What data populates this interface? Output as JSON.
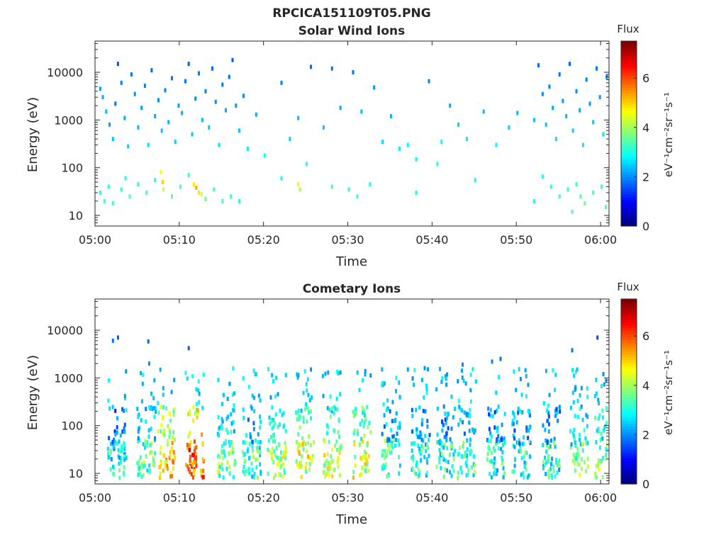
{
  "figure_title": "RPCICA151109T05.PNG",
  "chart_data": [
    {
      "type": "heatmap",
      "title": "Solar Wind Ions",
      "xlabel": "Time",
      "ylabel": "Energy (eV)",
      "y_scale": "log",
      "ylim": [
        6,
        45000
      ],
      "xlim": [
        "05:00",
        "06:01"
      ],
      "x_ticks": [
        "05:00",
        "05:10",
        "05:20",
        "05:30",
        "05:40",
        "05:50",
        "06:00"
      ],
      "y_ticks": [
        "10",
        "100",
        "1000",
        "10000"
      ],
      "colorbar": {
        "label": "Flux",
        "unit": "eV⁻¹cm⁻²sr⁻¹s⁻¹",
        "range": [
          0,
          7.5
        ],
        "ticks": [
          "0",
          "2",
          "4",
          "6"
        ]
      },
      "colormap": "jet",
      "background": "#ffffff",
      "time_unit": "minutes after 05:00",
      "points": [
        [
          0.5,
          4500,
          2.1
        ],
        [
          0.8,
          3000,
          2.2
        ],
        [
          1.2,
          1500,
          2.3
        ],
        [
          1.6,
          800,
          2.2
        ],
        [
          2.0,
          400,
          2.4
        ],
        [
          2.3,
          2200,
          1.8
        ],
        [
          2.6,
          15000,
          1.5
        ],
        [
          3.0,
          6000,
          1.9
        ],
        [
          3.4,
          1100,
          2.2
        ],
        [
          3.8,
          280,
          2.5
        ],
        [
          4.2,
          9000,
          1.8
        ],
        [
          4.6,
          3500,
          2.0
        ],
        [
          5.0,
          700,
          2.3
        ],
        [
          5.4,
          1800,
          2.1
        ],
        [
          5.8,
          5200,
          1.9
        ],
        [
          6.2,
          300,
          2.6
        ],
        [
          6.6,
          11000,
          1.7
        ],
        [
          7.0,
          1200,
          2.2
        ],
        [
          7.4,
          2600,
          2.0
        ],
        [
          7.8,
          600,
          2.4
        ],
        [
          8.2,
          4200,
          1.9
        ],
        [
          8.6,
          900,
          2.3
        ],
        [
          9.0,
          7500,
          1.8
        ],
        [
          9.4,
          350,
          2.5
        ],
        [
          9.8,
          2000,
          2.1
        ],
        [
          10.2,
          1400,
          2.2
        ],
        [
          10.6,
          6500,
          1.8
        ],
        [
          11.0,
          15000,
          1.6
        ],
        [
          11.4,
          500,
          2.4
        ],
        [
          11.8,
          2800,
          2.0
        ],
        [
          12.2,
          9500,
          1.8
        ],
        [
          12.6,
          1000,
          2.3
        ],
        [
          13.0,
          4000,
          1.9
        ],
        [
          13.4,
          700,
          2.4
        ],
        [
          13.8,
          12000,
          1.7
        ],
        [
          14.2,
          2400,
          2.0
        ],
        [
          14.6,
          300,
          2.6
        ],
        [
          15.0,
          5500,
          1.9
        ],
        [
          15.4,
          1600,
          2.2
        ],
        [
          15.8,
          8000,
          1.8
        ],
        [
          16.2,
          18000,
          1.6
        ],
        [
          16.6,
          2000,
          2.1
        ],
        [
          17.0,
          600,
          2.4
        ],
        [
          17.5,
          3200,
          2.0
        ],
        [
          18.0,
          250,
          2.7
        ],
        [
          19.0,
          1300,
          2.2
        ],
        [
          20.0,
          180,
          2.8
        ],
        [
          22.0,
          6000,
          1.9
        ],
        [
          23.0,
          400,
          2.5
        ],
        [
          24.0,
          1100,
          2.3
        ],
        [
          25.5,
          13000,
          1.7
        ],
        [
          27.0,
          700,
          2.4
        ],
        [
          28.0,
          12000,
          1.8
        ],
        [
          29.0,
          1800,
          2.2
        ],
        [
          30.5,
          10000,
          1.8
        ],
        [
          31.5,
          1500,
          2.3
        ],
        [
          33.0,
          4800,
          2.0
        ],
        [
          34.0,
          350,
          2.6
        ],
        [
          35.0,
          1200,
          2.3
        ],
        [
          36.0,
          250,
          2.7
        ],
        [
          37.0,
          300,
          2.8
        ],
        [
          38.0,
          150,
          2.9
        ],
        [
          39.5,
          6500,
          1.9
        ],
        [
          40.5,
          120,
          3.0
        ],
        [
          41.0,
          350,
          2.8
        ],
        [
          42.0,
          2000,
          2.2
        ],
        [
          43.0,
          800,
          2.5
        ],
        [
          44.0,
          400,
          2.7
        ],
        [
          46.0,
          1500,
          2.3
        ],
        [
          47.5,
          300,
          2.8
        ],
        [
          49.0,
          700,
          2.5
        ],
        [
          50.0,
          1400,
          2.3
        ],
        [
          52.0,
          1000,
          2.4
        ],
        [
          52.5,
          14000,
          1.7
        ],
        [
          53.0,
          3500,
          2.0
        ],
        [
          53.4,
          800,
          2.4
        ],
        [
          53.8,
          5000,
          1.9
        ],
        [
          54.2,
          1800,
          2.2
        ],
        [
          54.6,
          400,
          2.6
        ],
        [
          55.0,
          9000,
          1.8
        ],
        [
          55.4,
          2500,
          2.1
        ],
        [
          55.8,
          1200,
          2.3
        ],
        [
          56.2,
          15000,
          1.7
        ],
        [
          56.6,
          600,
          2.5
        ],
        [
          57.0,
          4000,
          2.0
        ],
        [
          57.4,
          1600,
          2.2
        ],
        [
          57.8,
          300,
          2.7
        ],
        [
          58.2,
          7000,
          1.9
        ],
        [
          58.6,
          2200,
          2.1
        ],
        [
          59.0,
          900,
          2.4
        ],
        [
          59.4,
          12000,
          1.8
        ],
        [
          59.8,
          3000,
          2.1
        ],
        [
          60.2,
          500,
          2.6
        ],
        [
          60.6,
          8000,
          1.9
        ],
        [
          60.8,
          1400,
          2.3
        ],
        [
          0.5,
          30,
          3.2
        ],
        [
          1.0,
          20,
          3.4
        ],
        [
          1.5,
          40,
          3.1
        ],
        [
          2.0,
          18,
          3.3
        ],
        [
          3.0,
          35,
          3.2
        ],
        [
          3.5,
          60,
          3.0
        ],
        [
          4.0,
          25,
          3.4
        ],
        [
          5.0,
          45,
          3.1
        ],
        [
          6.0,
          30,
          3.3
        ],
        [
          7.0,
          55,
          3.1
        ],
        [
          7.7,
          80,
          4.6
        ],
        [
          7.9,
          50,
          5.0
        ],
        [
          8.0,
          35,
          4.4
        ],
        [
          9.0,
          25,
          3.5
        ],
        [
          10.0,
          40,
          3.3
        ],
        [
          11.0,
          70,
          3.1
        ],
        [
          11.6,
          45,
          4.8
        ],
        [
          11.9,
          38,
          5.3
        ],
        [
          12.2,
          30,
          4.9
        ],
        [
          12.5,
          28,
          4.4
        ],
        [
          13.0,
          22,
          3.6
        ],
        [
          14.0,
          35,
          3.3
        ],
        [
          15.0,
          20,
          3.4
        ],
        [
          16.0,
          25,
          3.2
        ],
        [
          17.0,
          20,
          3.1
        ],
        [
          22.0,
          60,
          3.0
        ],
        [
          24.0,
          45,
          4.8
        ],
        [
          24.2,
          35,
          4.0
        ],
        [
          25.0,
          120,
          3.0
        ],
        [
          28.0,
          40,
          3.2
        ],
        [
          30.0,
          35,
          3.1
        ],
        [
          31.0,
          25,
          3.3
        ],
        [
          32.5,
          45,
          3.1
        ],
        [
          38.0,
          30,
          3.0
        ],
        [
          45.0,
          55,
          2.9
        ],
        [
          52.0,
          20,
          3.1
        ],
        [
          53.0,
          65,
          3.0
        ],
        [
          54.0,
          40,
          3.2
        ],
        [
          55.0,
          25,
          3.4
        ],
        [
          56.0,
          35,
          3.3
        ],
        [
          56.5,
          12,
          3.5
        ],
        [
          57.0,
          45,
          3.2
        ],
        [
          57.5,
          25,
          3.4
        ],
        [
          58.0,
          18,
          3.6
        ],
        [
          59.0,
          30,
          3.3
        ],
        [
          60.0,
          40,
          3.1
        ],
        [
          60.5,
          15,
          3.4
        ]
      ]
    },
    {
      "type": "heatmap",
      "title": "Cometary Ions",
      "xlabel": "Time",
      "ylabel": "Energy (eV)",
      "y_scale": "log",
      "ylim": [
        6,
        45000
      ],
      "xlim": [
        "05:00",
        "06:01"
      ],
      "x_ticks": [
        "05:00",
        "05:10",
        "05:20",
        "05:30",
        "05:40",
        "05:50",
        "06:00"
      ],
      "y_ticks": [
        "10",
        "100",
        "1000",
        "10000"
      ],
      "colorbar": {
        "label": "Flux",
        "unit": "eV⁻¹cm⁻²sr⁻¹s⁻¹",
        "range": [
          0,
          7.5
        ],
        "ticks": [
          "0",
          "2",
          "4",
          "6"
        ]
      },
      "colormap": "jet",
      "background": "#ffffff",
      "time_unit": "minutes after 05:00",
      "bursts": [
        [
          2.5,
          3.8
        ],
        [
          6.0,
          4.5
        ],
        [
          8.3,
          6.0
        ],
        [
          11.7,
          6.8
        ],
        [
          15.5,
          4.6
        ],
        [
          18.5,
          4.2
        ],
        [
          21.5,
          5.0
        ],
        [
          24.8,
          5.4
        ],
        [
          28.0,
          5.2
        ],
        [
          31.5,
          5.3
        ],
        [
          35.0,
          4.3
        ],
        [
          38.5,
          4.2
        ],
        [
          41.5,
          4.0
        ],
        [
          44.0,
          4.2
        ],
        [
          47.5,
          4.0
        ],
        [
          50.5,
          4.0
        ],
        [
          54.0,
          4.0
        ],
        [
          57.3,
          4.6
        ],
        [
          60.3,
          4.8
        ]
      ],
      "points": [
        [
          2.0,
          6000,
          1.8
        ],
        [
          2.6,
          7000,
          1.6
        ],
        [
          6.2,
          5800,
          1.7
        ],
        [
          6.3,
          2000,
          2.0
        ],
        [
          11.0,
          4200,
          1.6
        ],
        [
          25.5,
          1500,
          2.0
        ],
        [
          29.0,
          1300,
          2.1
        ],
        [
          37.0,
          1500,
          2.1
        ],
        [
          39.0,
          1600,
          2.0
        ],
        [
          43.5,
          1900,
          2.0
        ],
        [
          47.0,
          2200,
          1.9
        ],
        [
          48.0,
          2500,
          1.8
        ],
        [
          56.5,
          3800,
          1.8
        ],
        [
          59.5,
          7000,
          1.5
        ],
        [
          60.2,
          1200,
          2.0
        ]
      ]
    }
  ]
}
